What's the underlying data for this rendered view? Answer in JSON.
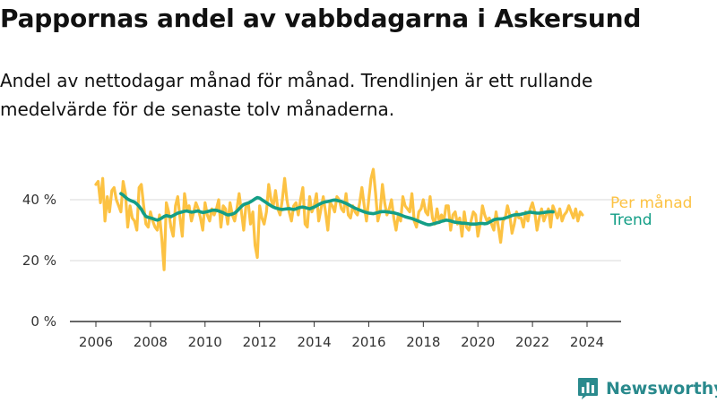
{
  "title": "Pappornas andel av vabbdagarna i Askersund",
  "subtitle": "Andel av nettodagar månad för månad. Trendlinjen är ett rullande medelvärde för de senaste tolv månaderna.",
  "brand": {
    "name": "Newsworthy",
    "icon": "bar-chart-logo-icon"
  },
  "colors": {
    "monthly": "#fcc243",
    "trend": "#139e86",
    "axis": "#333333",
    "grid": "#d9d9d9"
  },
  "chart_data": {
    "type": "line",
    "title": "Pappornas andel av vabbdagarna i Askersund",
    "xlabel": "",
    "ylabel": "",
    "xlim": [
      2005.5,
      2025.0
    ],
    "ylim": [
      0,
      50
    ],
    "x_ticks": [
      2006,
      2008,
      2010,
      2012,
      2014,
      2016,
      2018,
      2020,
      2022,
      2024
    ],
    "x_tick_labels": [
      "2006",
      "2008",
      "2010",
      "2012",
      "2014",
      "2016",
      "2018",
      "2020",
      "2022",
      "2024"
    ],
    "y_ticks": [
      0,
      20,
      40
    ],
    "y_tick_labels": [
      "0 %",
      "20 %",
      "40 %"
    ],
    "grid": true,
    "legend": "right",
    "series": [
      {
        "name": "Per månad",
        "color": "#fcc243",
        "x_start": 2006.0,
        "x_step": 0.083333,
        "values": [
          45,
          46,
          39,
          47,
          33,
          41,
          36,
          43,
          44,
          40,
          38,
          36,
          46,
          42,
          31,
          38,
          34,
          33,
          30,
          44,
          45,
          38,
          32,
          31,
          36,
          33,
          31,
          30,
          35,
          27,
          17,
          39,
          36,
          31,
          28,
          38,
          41,
          34,
          28,
          42,
          37,
          38,
          33,
          36,
          39,
          37,
          34,
          30,
          39,
          35,
          33,
          37,
          35,
          37,
          40,
          31,
          38,
          37,
          32,
          39,
          35,
          33,
          37,
          42,
          36,
          30,
          38,
          39,
          32,
          36,
          25,
          21,
          38,
          34,
          32,
          36,
          45,
          40,
          38,
          43,
          37,
          35,
          40,
          47,
          40,
          36,
          33,
          38,
          39,
          35,
          40,
          44,
          32,
          31,
          41,
          36,
          38,
          42,
          33,
          37,
          41,
          36,
          30,
          39,
          38,
          36,
          41,
          40,
          37,
          36,
          42,
          35,
          34,
          38,
          36,
          35,
          39,
          44,
          38,
          33,
          40,
          47,
          50,
          42,
          33,
          36,
          45,
          39,
          35,
          37,
          40,
          34,
          30,
          35,
          33,
          41,
          38,
          37,
          36,
          42,
          33,
          31,
          36,
          37,
          40,
          36,
          35,
          41,
          34,
          32,
          37,
          33,
          35,
          33,
          38,
          38,
          30,
          35,
          36,
          32,
          34,
          28,
          36,
          31,
          30,
          33,
          36,
          35,
          28,
          32,
          38,
          35,
          33,
          34,
          32,
          30,
          36,
          31,
          26,
          33,
          34,
          38,
          35,
          29,
          32,
          36,
          34,
          34,
          31,
          36,
          33,
          37,
          39,
          36,
          30,
          34,
          37,
          33,
          35,
          37,
          31,
          38,
          36,
          34,
          37,
          33,
          35,
          36,
          38,
          36,
          34,
          37,
          33,
          36,
          35
        ],
        "note": "monthly share per month, Jan 2006 onward"
      },
      {
        "name": "Trend",
        "color": "#139e86",
        "x_start": 2006.917,
        "x_step": 0.083333,
        "values": [
          42,
          41.5,
          40.8,
          40.2,
          39.8,
          39.5,
          39.2,
          38.6,
          37.8,
          36.8,
          35.5,
          34.5,
          34.2,
          34.0,
          33.8,
          33.5,
          33.3,
          33.6,
          34.0,
          34.5,
          34.8,
          34.6,
          34.4,
          34.8,
          35.2,
          35.6,
          35.8,
          36.0,
          36.2,
          36.3,
          36.1,
          35.9,
          36.0,
          36.2,
          36.3,
          36.0,
          35.8,
          35.9,
          36.1,
          36.3,
          36.5,
          36.6,
          36.5,
          36.3,
          36.0,
          35.7,
          35.3,
          35.0,
          35.1,
          35.3,
          35.6,
          36.2,
          37.0,
          37.8,
          38.4,
          38.7,
          38.9,
          39.3,
          39.8,
          40.3,
          40.7,
          40.5,
          40.0,
          39.5,
          39.0,
          38.5,
          38.0,
          37.6,
          37.3,
          37.1,
          36.9,
          36.8,
          36.9,
          37.0,
          37.1,
          36.9,
          36.8,
          37.0,
          37.3,
          37.5,
          37.6,
          37.4,
          37.2,
          37.0,
          37.3,
          37.6,
          38.0,
          38.4,
          38.8,
          39.1,
          39.3,
          39.4,
          39.6,
          39.8,
          39.9,
          39.8,
          39.6,
          39.4,
          39.1,
          38.8,
          38.4,
          38.0,
          37.6,
          37.2,
          36.9,
          36.6,
          36.3,
          36.0,
          35.8,
          35.6,
          35.5,
          35.4,
          35.6,
          35.8,
          36.0,
          36.1,
          36.1,
          36.0,
          35.9,
          35.8,
          35.7,
          35.5,
          35.3,
          35.0,
          34.7,
          34.4,
          34.2,
          34.0,
          33.8,
          33.5,
          33.2,
          32.9,
          32.6,
          32.3,
          32.0,
          31.8,
          31.8,
          32.0,
          32.2,
          32.4,
          32.6,
          32.9,
          33.1,
          33.3,
          33.2,
          33.0,
          32.8,
          32.6,
          32.5,
          32.4,
          32.3,
          32.3,
          32.2,
          32.1,
          32.0,
          32.0,
          32.0,
          32.1,
          32.2,
          32.2,
          32.1,
          32.2,
          32.6,
          33.0,
          33.4,
          33.6,
          33.7,
          33.7,
          33.8,
          34.0,
          34.2,
          34.5,
          34.8,
          35.0,
          35.1,
          35.1,
          35.2,
          35.4,
          35.6,
          35.8,
          35.9,
          35.8,
          35.7,
          35.6,
          35.6,
          35.7,
          35.8,
          35.9,
          36.0,
          36.1,
          36.0
        ]
      }
    ]
  }
}
